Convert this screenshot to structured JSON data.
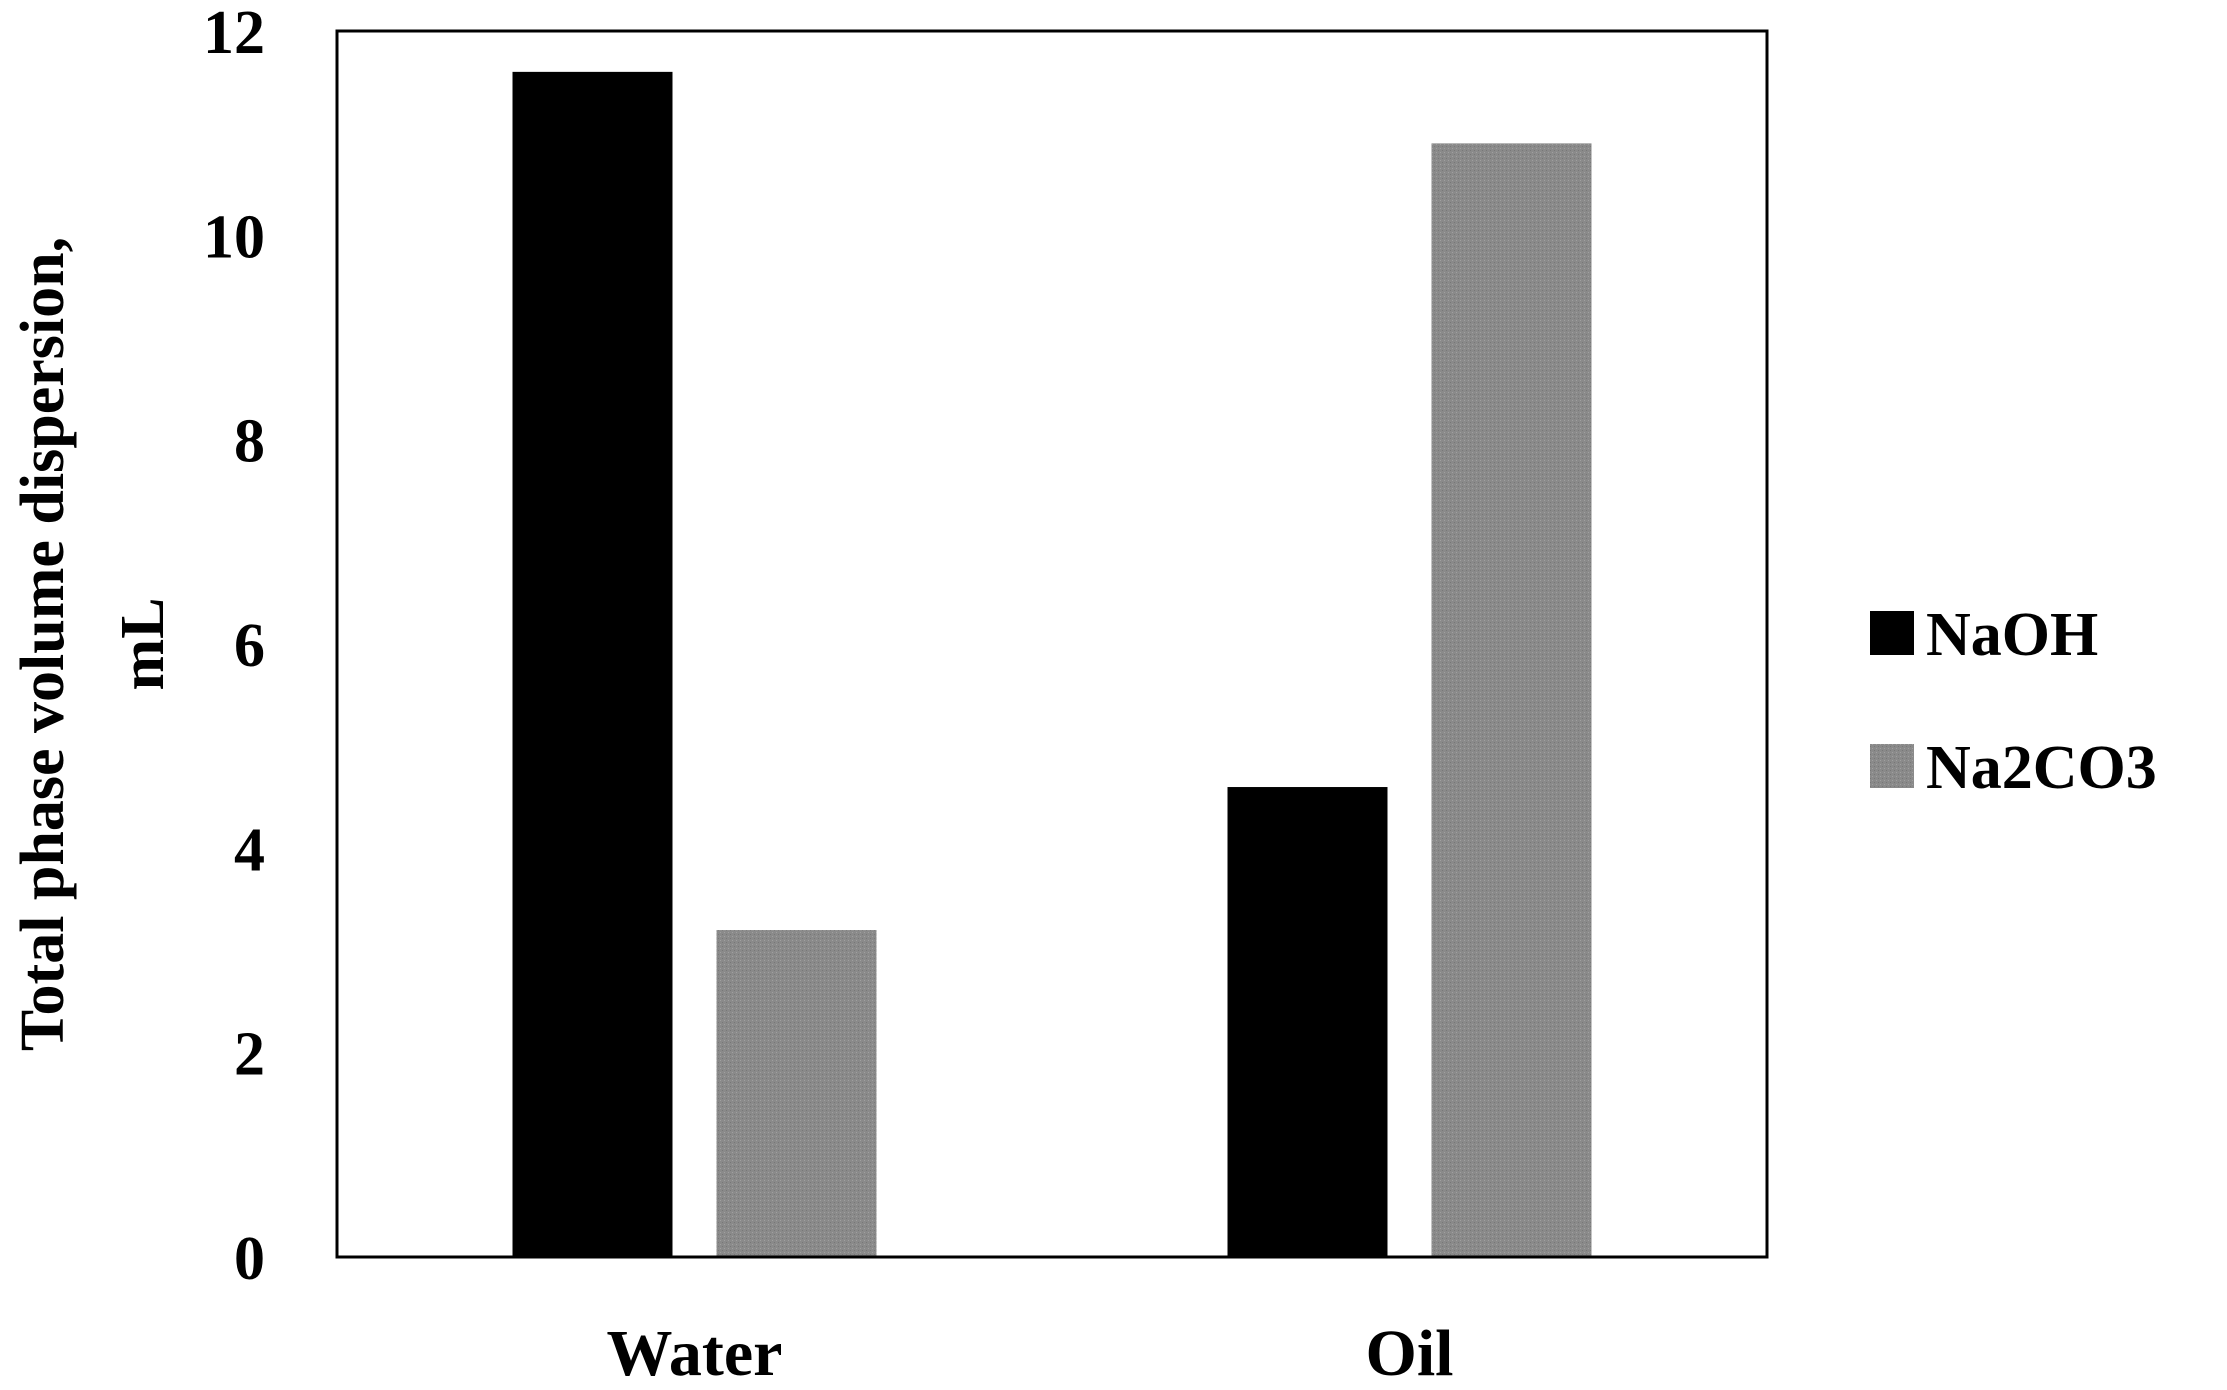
{
  "chart_data": {
    "type": "bar",
    "title": "",
    "xlabel": "",
    "ylabel_lines": [
      "Total phase volume dispersion,",
      "mL"
    ],
    "categories": [
      "Water",
      "Oil"
    ],
    "series": [
      {
        "name": "NaOH",
        "values": [
          11.6,
          4.6
        ],
        "color": "#000000"
      },
      {
        "name": "Na2CO3",
        "values": [
          3.2,
          10.9
        ],
        "color": "#8a8a8a"
      }
    ],
    "ylim": [
      0,
      12
    ],
    "yticks": [
      0,
      2,
      4,
      6,
      8,
      10,
      12
    ],
    "grid": false,
    "legend_position": "right"
  }
}
